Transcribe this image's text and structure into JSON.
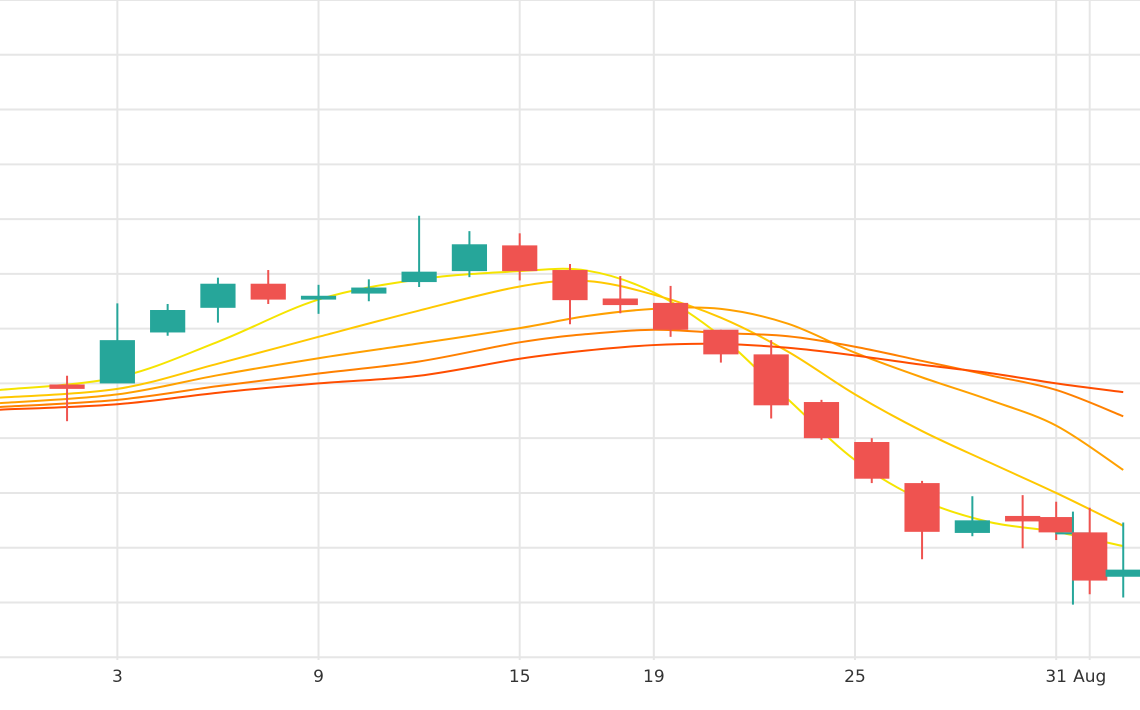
{
  "chart_data": {
    "type": "candlestick",
    "title": "",
    "xlabel": "",
    "ylabel": "",
    "grid": true,
    "legend": "none",
    "x_ticks": [
      {
        "day": 3,
        "label": "3"
      },
      {
        "day": 9,
        "label": "9"
      },
      {
        "day": 15,
        "label": "15"
      },
      {
        "day": 19,
        "label": "19"
      },
      {
        "day": 25,
        "label": "25"
      },
      {
        "day": 31,
        "label": "31"
      },
      {
        "day": 32,
        "label": "Aug"
      }
    ],
    "candles": [
      {
        "day": 1.5,
        "open": 4.98,
        "close": 4.9,
        "high": 5.14,
        "low": 4.31
      },
      {
        "day": 3,
        "open": 5.0,
        "close": 5.79,
        "high": 6.46,
        "low": 5.0
      },
      {
        "day": 4.5,
        "open": 5.93,
        "close": 6.34,
        "high": 6.45,
        "low": 5.87
      },
      {
        "day": 6,
        "open": 6.38,
        "close": 6.82,
        "high": 6.93,
        "low": 6.11
      },
      {
        "day": 7.5,
        "open": 6.82,
        "close": 6.53,
        "high": 7.07,
        "low": 6.45
      },
      {
        "day": 9,
        "open": 6.53,
        "close": 6.6,
        "high": 6.8,
        "low": 6.27
      },
      {
        "day": 10.5,
        "open": 6.64,
        "close": 6.75,
        "high": 6.9,
        "low": 6.5
      },
      {
        "day": 12,
        "open": 6.85,
        "close": 7.04,
        "high": 8.06,
        "low": 6.76
      },
      {
        "day": 13.5,
        "open": 7.05,
        "close": 7.54,
        "high": 7.78,
        "low": 6.94
      },
      {
        "day": 15,
        "open": 7.52,
        "close": 7.05,
        "high": 7.74,
        "low": 6.88
      },
      {
        "day": 16.5,
        "open": 7.07,
        "close": 6.52,
        "high": 7.18,
        "low": 6.08
      },
      {
        "day": 18,
        "open": 6.55,
        "close": 6.43,
        "high": 6.96,
        "low": 6.28
      },
      {
        "day": 19.5,
        "open": 6.47,
        "close": 5.98,
        "high": 6.78,
        "low": 5.85
      },
      {
        "day": 21,
        "open": 5.98,
        "close": 5.53,
        "high": 5.98,
        "low": 5.38
      },
      {
        "day": 22.5,
        "open": 5.53,
        "close": 4.6,
        "high": 5.79,
        "low": 4.36
      },
      {
        "day": 24,
        "open": 4.66,
        "close": 4.0,
        "high": 4.7,
        "low": 3.97
      },
      {
        "day": 25.5,
        "open": 3.93,
        "close": 3.26,
        "high": 4.0,
        "low": 3.18
      },
      {
        "day": 27,
        "open": 3.18,
        "close": 2.29,
        "high": 3.22,
        "low": 1.79
      },
      {
        "day": 28.5,
        "open": 2.27,
        "close": 2.5,
        "high": 2.94,
        "low": 2.21
      },
      {
        "day": 30,
        "open": 2.58,
        "close": 2.48,
        "high": 2.96,
        "low": 1.99
      },
      {
        "day": 31,
        "open": 2.56,
        "close": 2.28,
        "high": 2.84,
        "low": 2.14
      },
      {
        "day": 31.5,
        "open": 2.25,
        "close": 2.28,
        "high": 2.66,
        "low": 0.96
      },
      {
        "day": 32,
        "open": 2.28,
        "close": 1.4,
        "high": 2.73,
        "low": 1.15
      },
      {
        "day": 33,
        "open": 1.47,
        "close": 1.6,
        "high": 2.46,
        "low": 1.09
      }
    ],
    "moving_averages": [
      {
        "color": "#f5e400",
        "values": [
          [
            -0.5,
            4.88
          ],
          [
            3,
            5.11
          ],
          [
            6,
            5.76
          ],
          [
            9,
            6.53
          ],
          [
            12,
            6.9
          ],
          [
            15,
            7.05
          ],
          [
            17,
            7.06
          ],
          [
            19,
            6.66
          ],
          [
            21,
            5.86
          ],
          [
            23,
            4.71
          ],
          [
            25,
            3.6
          ],
          [
            27,
            2.87
          ],
          [
            29,
            2.47
          ],
          [
            31,
            2.29
          ],
          [
            33,
            2.03
          ]
        ]
      },
      {
        "color": "#ffc800",
        "values": [
          [
            -0.5,
            4.74
          ],
          [
            3,
            4.9
          ],
          [
            6,
            5.36
          ],
          [
            9,
            5.85
          ],
          [
            12,
            6.33
          ],
          [
            15,
            6.77
          ],
          [
            17,
            6.87
          ],
          [
            19,
            6.62
          ],
          [
            21,
            6.2
          ],
          [
            23,
            5.58
          ],
          [
            25,
            4.8
          ],
          [
            27,
            4.13
          ],
          [
            29,
            3.56
          ],
          [
            31,
            3.0
          ],
          [
            33,
            2.4
          ]
        ]
      },
      {
        "color": "#ffa000",
        "values": [
          [
            -0.5,
            4.64
          ],
          [
            3,
            4.8
          ],
          [
            6,
            5.15
          ],
          [
            9,
            5.46
          ],
          [
            12,
            5.73
          ],
          [
            15,
            6.01
          ],
          [
            17,
            6.23
          ],
          [
            19,
            6.36
          ],
          [
            21,
            6.36
          ],
          [
            23,
            6.09
          ],
          [
            25,
            5.56
          ],
          [
            27,
            5.11
          ],
          [
            29,
            4.7
          ],
          [
            31,
            4.23
          ],
          [
            33,
            3.42
          ]
        ]
      },
      {
        "color": "#ff8000",
        "values": [
          [
            -0.5,
            4.57
          ],
          [
            3,
            4.7
          ],
          [
            6,
            4.95
          ],
          [
            9,
            5.18
          ],
          [
            12,
            5.4
          ],
          [
            15,
            5.75
          ],
          [
            17,
            5.9
          ],
          [
            19,
            5.98
          ],
          [
            21,
            5.92
          ],
          [
            23,
            5.86
          ],
          [
            25,
            5.67
          ],
          [
            27,
            5.41
          ],
          [
            29,
            5.15
          ],
          [
            31,
            4.88
          ],
          [
            33,
            4.4
          ]
        ]
      },
      {
        "color": "#ff4d00",
        "values": [
          [
            -0.5,
            4.52
          ],
          [
            3,
            4.62
          ],
          [
            6,
            4.83
          ],
          [
            9,
            5.0
          ],
          [
            12,
            5.14
          ],
          [
            15,
            5.45
          ],
          [
            17,
            5.6
          ],
          [
            19,
            5.7
          ],
          [
            21,
            5.72
          ],
          [
            23,
            5.65
          ],
          [
            25,
            5.51
          ],
          [
            27,
            5.34
          ],
          [
            29,
            5.19
          ],
          [
            31,
            5.0
          ],
          [
            33,
            4.84
          ]
        ]
      }
    ],
    "up_color": "#26a69a",
    "down_color": "#ef5350",
    "xlim": [
      -0.5,
      33.5
    ],
    "ylim": [
      -0.05,
      12.0
    ]
  }
}
